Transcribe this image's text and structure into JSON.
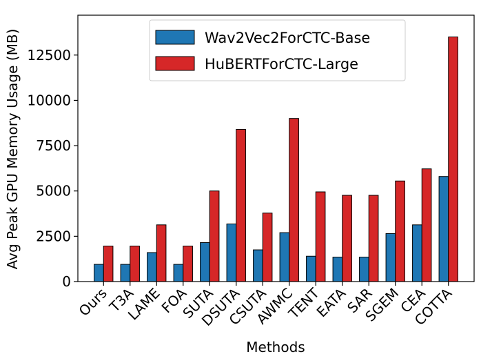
{
  "chart_data": {
    "type": "bar",
    "title": "",
    "xlabel": "Methods",
    "ylabel": "Avg Peak GPU Memory Usage (MB)",
    "ylim": [
      0,
      14700
    ],
    "yticks": [
      0,
      2500,
      5000,
      7500,
      10000,
      12500
    ],
    "ytick_labels": [
      "0",
      "2500",
      "5000",
      "7500",
      "10000",
      "12500"
    ],
    "categories": [
      "Ours",
      "T3A",
      "LAME",
      "FOA",
      "SUTA",
      "DSUTA",
      "CSUTA",
      "AWMC",
      "TENT",
      "EATA",
      "SAR",
      "SGEM",
      "CEA",
      "COTTA"
    ],
    "series": [
      {
        "name": "Wav2Vec2ForCTC-Base",
        "color": "#1f77b4",
        "values": [
          950,
          950,
          1600,
          950,
          2150,
          3180,
          1750,
          2700,
          1400,
          1350,
          1350,
          2650,
          3130,
          5800
        ]
      },
      {
        "name": "HuBERTForCTC-Large",
        "color": "#d62728",
        "values": [
          1960,
          1960,
          3130,
          1960,
          5000,
          8400,
          3780,
          9000,
          4950,
          4760,
          4760,
          5550,
          6220,
          13500
        ]
      }
    ],
    "legend_position": "top-center"
  }
}
